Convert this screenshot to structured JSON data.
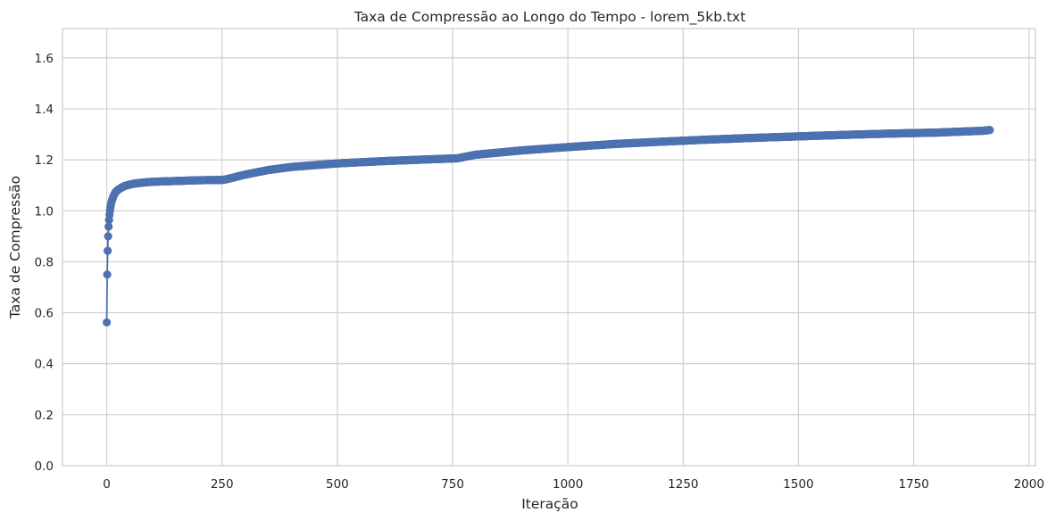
{
  "chart_data": {
    "type": "line",
    "title": "Taxa de Compressão ao Longo do Tempo - lorem_5kb.txt",
    "xlabel": "Iteração",
    "ylabel": "Taxa de Compressão",
    "xlim": [
      -96,
      2014
    ],
    "ylim": [
      0,
      1.715
    ],
    "x_ticks": [
      0,
      250,
      500,
      750,
      1000,
      1250,
      1500,
      1750,
      2000
    ],
    "y_ticks": [
      0.0,
      0.2,
      0.4,
      0.6,
      0.8,
      1.0,
      1.2,
      1.4,
      1.6
    ],
    "x_tick_labels": [
      "0",
      "250",
      "500",
      "750",
      "1000",
      "1250",
      "1500",
      "1750",
      "2000"
    ],
    "y_tick_labels": [
      "0.0",
      "0.2",
      "0.4",
      "0.6",
      "0.8",
      "1.0",
      "1.2",
      "1.4",
      "1.6"
    ],
    "grid": true,
    "marker": "circle",
    "color": "#4c72b0",
    "series": [
      {
        "x": [
          0,
          1,
          2,
          3,
          4,
          5,
          6,
          7,
          8,
          9,
          10,
          12,
          14,
          16,
          18,
          20,
          25,
          30,
          35,
          40,
          50,
          60,
          80,
          100,
          150,
          200,
          250,
          260,
          300,
          350,
          400,
          500,
          600,
          700,
          760,
          800,
          900,
          1000,
          1100,
          1200,
          1300,
          1400,
          1500,
          1600,
          1700,
          1800,
          1900,
          1915
        ],
        "y": [
          0.562,
          0.75,
          0.843,
          0.9,
          0.938,
          0.964,
          0.984,
          1.0,
          1.013,
          1.023,
          1.032,
          1.045,
          1.055,
          1.063,
          1.07,
          1.075,
          1.083,
          1.089,
          1.094,
          1.098,
          1.103,
          1.107,
          1.111,
          1.114,
          1.117,
          1.12,
          1.121,
          1.124,
          1.142,
          1.16,
          1.172,
          1.186,
          1.195,
          1.202,
          1.206,
          1.22,
          1.237,
          1.25,
          1.262,
          1.271,
          1.279,
          1.286,
          1.292,
          1.298,
          1.303,
          1.307,
          1.314,
          1.317
        ]
      }
    ]
  }
}
